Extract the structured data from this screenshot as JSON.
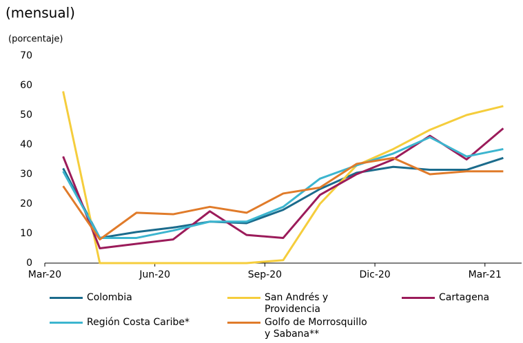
{
  "chart_data": {
    "type": "line",
    "title": "(mensual)",
    "y_label": "(porcentaje)",
    "categories": [
      "Mar-20",
      null,
      null,
      "Jun-20",
      null,
      null,
      "Sep-20",
      null,
      null,
      "Dic-20",
      null,
      null,
      "Mar-21"
    ],
    "ylim": [
      0,
      70
    ],
    "yticks": [
      0,
      10,
      20,
      30,
      40,
      50,
      60,
      70
    ],
    "grid": false,
    "series": [
      {
        "name": "Colombia",
        "color": "#1b6b8c",
        "values": [
          32,
          8.5,
          10.5,
          12,
          14,
          13.5,
          18,
          25,
          30.5,
          32.5,
          31.5,
          31.5,
          35.5
        ]
      },
      {
        "name": "San Andrés y Providencia",
        "color": "#f5cd3c",
        "values": [
          58,
          0,
          0,
          0,
          0,
          0,
          1,
          20,
          33,
          38.5,
          45,
          50,
          53
        ]
      },
      {
        "name": "Cartagena",
        "color": "#9b1b5a",
        "values": [
          36,
          5,
          6.5,
          8,
          17.5,
          9.5,
          8.5,
          23,
          30,
          35,
          43,
          35,
          45.5
        ]
      },
      {
        "name": "Región Costa Caribe*",
        "color": "#3cb5cf",
        "values": [
          31,
          8.5,
          8.5,
          11,
          14,
          14,
          19,
          28.5,
          33,
          37,
          42.5,
          36,
          38.5
        ]
      },
      {
        "name": "Golfo de Morrosquillo y Sabana**",
        "color": "#e07b2a",
        "values": [
          26,
          8,
          17,
          16.5,
          19,
          17,
          23.5,
          25.5,
          33.5,
          35.5,
          30,
          31,
          31
        ]
      }
    ]
  }
}
